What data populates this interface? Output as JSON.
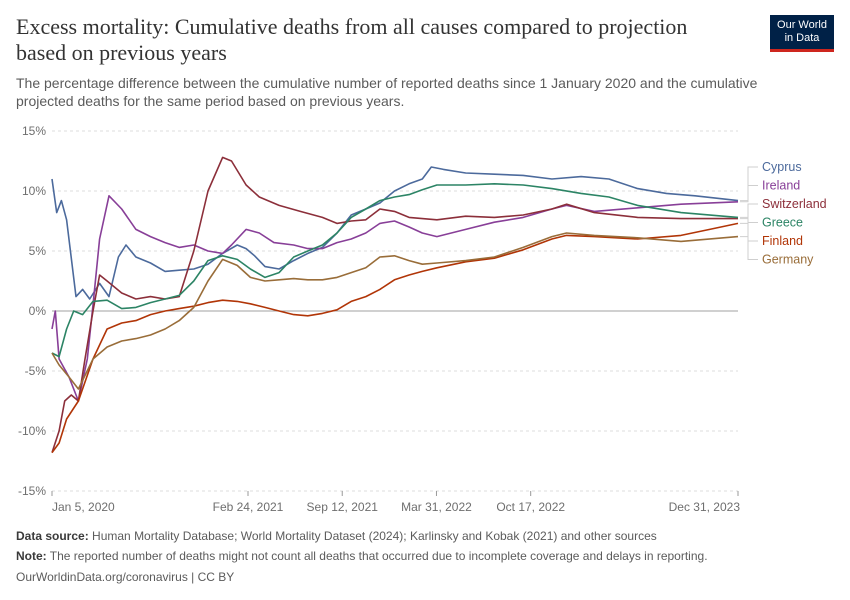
{
  "header": {
    "title": "Excess mortality: Cumulative deaths from all causes compared to projection based on previous years",
    "subtitle": "The percentage difference between the cumulative number of reported deaths since 1 January 2020 and the cumulative projected deaths for the same period based on previous years.",
    "logo_line1": "Our World",
    "logo_line2": "in Data"
  },
  "footer": {
    "source_label": "Data source:",
    "source_text": "Human Mortality Database; World Mortality Dataset (2024); Karlinsky and Kobak (2021) and other sources",
    "note_label": "Note:",
    "note_text": "The reported number of deaths might not count all deaths that occurred due to incomplete coverage and delays in reporting.",
    "credit": "OurWorldinData.org/coronavirus | CC BY"
  },
  "chart_data": {
    "type": "line",
    "title": "Excess mortality: Cumulative deaths from all causes compared to projection based on previous years",
    "xlabel": "",
    "ylabel": "",
    "x_range": [
      "2020-01-05",
      "2023-12-31"
    ],
    "x_ticks": [
      {
        "date": "2020-01-05",
        "label": "Jan 5, 2020"
      },
      {
        "date": "2021-02-24",
        "label": "Feb 24, 2021"
      },
      {
        "date": "2021-09-12",
        "label": "Sep 12, 2021"
      },
      {
        "date": "2022-03-31",
        "label": "Mar 31, 2022"
      },
      {
        "date": "2022-10-17",
        "label": "Oct 17, 2022"
      },
      {
        "date": "2023-12-31",
        "label": "Dec 31, 2023"
      }
    ],
    "ylim": [
      -15,
      15
    ],
    "y_ticks": [
      15,
      10,
      5,
      0,
      -5,
      -10,
      -15
    ],
    "y_tick_labels": [
      "15%",
      "10%",
      "5%",
      "0%",
      "-5%",
      "-10%",
      "-15%"
    ],
    "grid": true,
    "legend_position": "right",
    "series": [
      {
        "name": "Cyprus",
        "color": "#4c6a9c",
        "points": [
          [
            "2020-01-05",
            11
          ],
          [
            "2020-01-15",
            8.2
          ],
          [
            "2020-01-25",
            9.2
          ],
          [
            "2020-02-05",
            7.6
          ],
          [
            "2020-02-25",
            1.2
          ],
          [
            "2020-03-10",
            1.8
          ],
          [
            "2020-03-25",
            1
          ],
          [
            "2020-04-15",
            2.3
          ],
          [
            "2020-05-05",
            1.2
          ],
          [
            "2020-05-25",
            4.5
          ],
          [
            "2020-06-10",
            5.5
          ],
          [
            "2020-07-01",
            4.5
          ],
          [
            "2020-08-01",
            4
          ],
          [
            "2020-09-01",
            3.3
          ],
          [
            "2020-10-01",
            3.4
          ],
          [
            "2020-11-01",
            3.5
          ],
          [
            "2020-12-01",
            3.9
          ],
          [
            "2021-01-01",
            4.8
          ],
          [
            "2021-02-01",
            5.5
          ],
          [
            "2021-02-20",
            5.2
          ],
          [
            "2021-03-10",
            4.6
          ],
          [
            "2021-04-01",
            3.7
          ],
          [
            "2021-05-01",
            3.5
          ],
          [
            "2021-06-01",
            4.2
          ],
          [
            "2021-07-01",
            4.8
          ],
          [
            "2021-08-01",
            5.3
          ],
          [
            "2021-09-01",
            6.5
          ],
          [
            "2021-10-01",
            8
          ],
          [
            "2021-11-01",
            8.5
          ],
          [
            "2021-12-01",
            9
          ],
          [
            "2022-01-01",
            10
          ],
          [
            "2022-02-01",
            10.6
          ],
          [
            "2022-03-01",
            11
          ],
          [
            "2022-03-20",
            12
          ],
          [
            "2022-04-15",
            11.8
          ],
          [
            "2022-06-01",
            11.5
          ],
          [
            "2022-08-01",
            11.4
          ],
          [
            "2022-10-01",
            11.3
          ],
          [
            "2022-12-01",
            11
          ],
          [
            "2023-02-01",
            11.2
          ],
          [
            "2023-04-01",
            11
          ],
          [
            "2023-06-01",
            10.2
          ],
          [
            "2023-08-01",
            9.8
          ],
          [
            "2023-10-01",
            9.6
          ],
          [
            "2023-12-31",
            9.2
          ]
        ]
      },
      {
        "name": "Ireland",
        "color": "#883f98",
        "points": [
          [
            "2020-01-05",
            -1.5
          ],
          [
            "2020-01-12",
            0
          ],
          [
            "2020-01-20",
            -4
          ],
          [
            "2020-02-10",
            -5.5
          ],
          [
            "2020-03-01",
            -7.5
          ],
          [
            "2020-03-20",
            -4
          ],
          [
            "2020-04-01",
            0.5
          ],
          [
            "2020-04-15",
            6
          ],
          [
            "2020-05-05",
            9.6
          ],
          [
            "2020-06-01",
            8.5
          ],
          [
            "2020-07-01",
            6.8
          ],
          [
            "2020-08-01",
            6.2
          ],
          [
            "2020-09-01",
            5.7
          ],
          [
            "2020-10-01",
            5.3
          ],
          [
            "2020-11-01",
            5.5
          ],
          [
            "2020-12-01",
            5
          ],
          [
            "2021-01-01",
            4.8
          ],
          [
            "2021-01-20",
            5.5
          ],
          [
            "2021-02-20",
            6.8
          ],
          [
            "2021-03-20",
            6.5
          ],
          [
            "2021-04-20",
            5.7
          ],
          [
            "2021-06-01",
            5.5
          ],
          [
            "2021-07-01",
            5.2
          ],
          [
            "2021-08-01",
            5.2
          ],
          [
            "2021-09-01",
            5.7
          ],
          [
            "2021-10-01",
            6
          ],
          [
            "2021-11-01",
            6.5
          ],
          [
            "2021-12-01",
            7.3
          ],
          [
            "2022-01-01",
            7.5
          ],
          [
            "2022-02-01",
            7
          ],
          [
            "2022-03-01",
            6.5
          ],
          [
            "2022-04-01",
            6.2
          ],
          [
            "2022-06-01",
            6.8
          ],
          [
            "2022-08-01",
            7.4
          ],
          [
            "2022-10-01",
            7.8
          ],
          [
            "2022-12-01",
            8.5
          ],
          [
            "2023-01-01",
            8.8
          ],
          [
            "2023-03-01",
            8.3
          ],
          [
            "2023-06-01",
            8.6
          ],
          [
            "2023-09-01",
            8.9
          ],
          [
            "2023-12-31",
            9.1
          ]
        ]
      },
      {
        "name": "Switzerland",
        "color": "#8c2f3a",
        "points": [
          [
            "2020-01-05",
            -11.8
          ],
          [
            "2020-01-20",
            -10
          ],
          [
            "2020-02-01",
            -7.5
          ],
          [
            "2020-02-15",
            -7
          ],
          [
            "2020-03-01",
            -7.5
          ],
          [
            "2020-03-15",
            -4
          ],
          [
            "2020-04-01",
            0
          ],
          [
            "2020-04-15",
            3
          ],
          [
            "2020-05-01",
            2.5
          ],
          [
            "2020-06-01",
            1.5
          ],
          [
            "2020-07-01",
            1
          ],
          [
            "2020-08-01",
            1.2
          ],
          [
            "2020-09-01",
            1
          ],
          [
            "2020-10-01",
            1.2
          ],
          [
            "2020-11-01",
            5
          ],
          [
            "2020-12-01",
            10
          ],
          [
            "2021-01-01",
            12.8
          ],
          [
            "2021-01-20",
            12.5
          ],
          [
            "2021-02-20",
            10.5
          ],
          [
            "2021-03-20",
            9.5
          ],
          [
            "2021-05-01",
            8.8
          ],
          [
            "2021-06-15",
            8.3
          ],
          [
            "2021-08-01",
            7.8
          ],
          [
            "2021-09-01",
            7.3
          ],
          [
            "2021-10-01",
            7.5
          ],
          [
            "2021-11-01",
            7.6
          ],
          [
            "2021-12-01",
            8.5
          ],
          [
            "2022-01-01",
            8.3
          ],
          [
            "2022-02-01",
            7.8
          ],
          [
            "2022-04-01",
            7.6
          ],
          [
            "2022-06-01",
            7.9
          ],
          [
            "2022-08-01",
            7.8
          ],
          [
            "2022-10-01",
            8
          ],
          [
            "2022-12-01",
            8.5
          ],
          [
            "2023-01-01",
            8.9
          ],
          [
            "2023-03-01",
            8.2
          ],
          [
            "2023-06-01",
            7.8
          ],
          [
            "2023-09-01",
            7.7
          ],
          [
            "2023-12-31",
            7.7
          ]
        ]
      },
      {
        "name": "Greece",
        "color": "#2c8465",
        "points": [
          [
            "2020-01-05",
            -3.5
          ],
          [
            "2020-01-20",
            -3.8
          ],
          [
            "2020-02-05",
            -1.5
          ],
          [
            "2020-02-20",
            0
          ],
          [
            "2020-03-10",
            -0.3
          ],
          [
            "2020-04-01",
            0.8
          ],
          [
            "2020-05-01",
            0.9
          ],
          [
            "2020-06-01",
            0.2
          ],
          [
            "2020-07-01",
            0.3
          ],
          [
            "2020-08-01",
            0.7
          ],
          [
            "2020-09-01",
            1
          ],
          [
            "2020-10-01",
            1.3
          ],
          [
            "2020-11-01",
            2.5
          ],
          [
            "2020-12-01",
            4.2
          ],
          [
            "2021-01-01",
            4.6
          ],
          [
            "2021-02-01",
            4.3
          ],
          [
            "2021-03-01",
            3.5
          ],
          [
            "2021-04-01",
            2.8
          ],
          [
            "2021-05-01",
            3.2
          ],
          [
            "2021-06-01",
            4.5
          ],
          [
            "2021-07-01",
            5
          ],
          [
            "2021-08-01",
            5.5
          ],
          [
            "2021-09-01",
            6.5
          ],
          [
            "2021-10-01",
            7.8
          ],
          [
            "2021-11-01",
            8.5
          ],
          [
            "2021-12-01",
            9.2
          ],
          [
            "2022-01-01",
            9.5
          ],
          [
            "2022-02-01",
            9.7
          ],
          [
            "2022-03-01",
            10.1
          ],
          [
            "2022-04-01",
            10.5
          ],
          [
            "2022-06-01",
            10.5
          ],
          [
            "2022-08-01",
            10.6
          ],
          [
            "2022-10-01",
            10.5
          ],
          [
            "2022-12-01",
            10.2
          ],
          [
            "2023-02-01",
            9.8
          ],
          [
            "2023-04-01",
            9.5
          ],
          [
            "2023-06-01",
            8.8
          ],
          [
            "2023-09-01",
            8.2
          ],
          [
            "2023-12-31",
            7.8
          ]
        ]
      },
      {
        "name": "Finland",
        "color": "#b13507",
        "points": [
          [
            "2020-01-05",
            -11.8
          ],
          [
            "2020-01-20",
            -11
          ],
          [
            "2020-02-05",
            -9
          ],
          [
            "2020-03-01",
            -7.5
          ],
          [
            "2020-04-01",
            -4
          ],
          [
            "2020-05-01",
            -1.5
          ],
          [
            "2020-06-01",
            -1
          ],
          [
            "2020-07-01",
            -0.8
          ],
          [
            "2020-08-01",
            -0.3
          ],
          [
            "2020-09-01",
            0
          ],
          [
            "2020-10-01",
            0.2
          ],
          [
            "2020-11-01",
            0.4
          ],
          [
            "2020-12-01",
            0.7
          ],
          [
            "2021-01-01",
            0.9
          ],
          [
            "2021-02-01",
            0.8
          ],
          [
            "2021-03-01",
            0.6
          ],
          [
            "2021-04-01",
            0.3
          ],
          [
            "2021-05-01",
            0
          ],
          [
            "2021-06-01",
            -0.3
          ],
          [
            "2021-07-01",
            -0.4
          ],
          [
            "2021-08-01",
            -0.2
          ],
          [
            "2021-09-01",
            0.1
          ],
          [
            "2021-10-01",
            0.8
          ],
          [
            "2021-11-01",
            1.2
          ],
          [
            "2021-12-01",
            1.8
          ],
          [
            "2022-01-01",
            2.6
          ],
          [
            "2022-02-01",
            3
          ],
          [
            "2022-03-01",
            3.3
          ],
          [
            "2022-04-01",
            3.6
          ],
          [
            "2022-06-01",
            4.1
          ],
          [
            "2022-08-01",
            4.4
          ],
          [
            "2022-10-01",
            5.1
          ],
          [
            "2022-12-01",
            6
          ],
          [
            "2023-01-01",
            6.3
          ],
          [
            "2023-03-01",
            6.2
          ],
          [
            "2023-06-01",
            6
          ],
          [
            "2023-09-01",
            6.3
          ],
          [
            "2023-11-01",
            6.8
          ],
          [
            "2023-12-31",
            7.3
          ]
        ]
      },
      {
        "name": "Germany",
        "color": "#996d39",
        "points": [
          [
            "2020-01-05",
            -3.5
          ],
          [
            "2020-01-20",
            -4.5
          ],
          [
            "2020-02-10",
            -5.5
          ],
          [
            "2020-03-01",
            -6.5
          ],
          [
            "2020-04-01",
            -4
          ],
          [
            "2020-05-01",
            -3
          ],
          [
            "2020-06-01",
            -2.5
          ],
          [
            "2020-07-01",
            -2.3
          ],
          [
            "2020-08-01",
            -2
          ],
          [
            "2020-09-01",
            -1.5
          ],
          [
            "2020-10-01",
            -0.8
          ],
          [
            "2020-11-01",
            0.3
          ],
          [
            "2020-12-01",
            2.5
          ],
          [
            "2021-01-01",
            4.3
          ],
          [
            "2021-02-01",
            3.8
          ],
          [
            "2021-03-01",
            2.8
          ],
          [
            "2021-04-01",
            2.5
          ],
          [
            "2021-05-01",
            2.6
          ],
          [
            "2021-06-01",
            2.7
          ],
          [
            "2021-07-01",
            2.6
          ],
          [
            "2021-08-01",
            2.6
          ],
          [
            "2021-09-01",
            2.8
          ],
          [
            "2021-10-01",
            3.2
          ],
          [
            "2021-11-01",
            3.6
          ],
          [
            "2021-12-01",
            4.5
          ],
          [
            "2022-01-01",
            4.6
          ],
          [
            "2022-02-01",
            4.2
          ],
          [
            "2022-03-01",
            3.9
          ],
          [
            "2022-04-01",
            4
          ],
          [
            "2022-06-01",
            4.2
          ],
          [
            "2022-08-01",
            4.5
          ],
          [
            "2022-10-01",
            5.3
          ],
          [
            "2022-12-01",
            6.2
          ],
          [
            "2023-01-01",
            6.5
          ],
          [
            "2023-03-01",
            6.3
          ],
          [
            "2023-06-01",
            6.1
          ],
          [
            "2023-09-01",
            5.8
          ],
          [
            "2023-12-31",
            6.2
          ]
        ]
      }
    ]
  }
}
